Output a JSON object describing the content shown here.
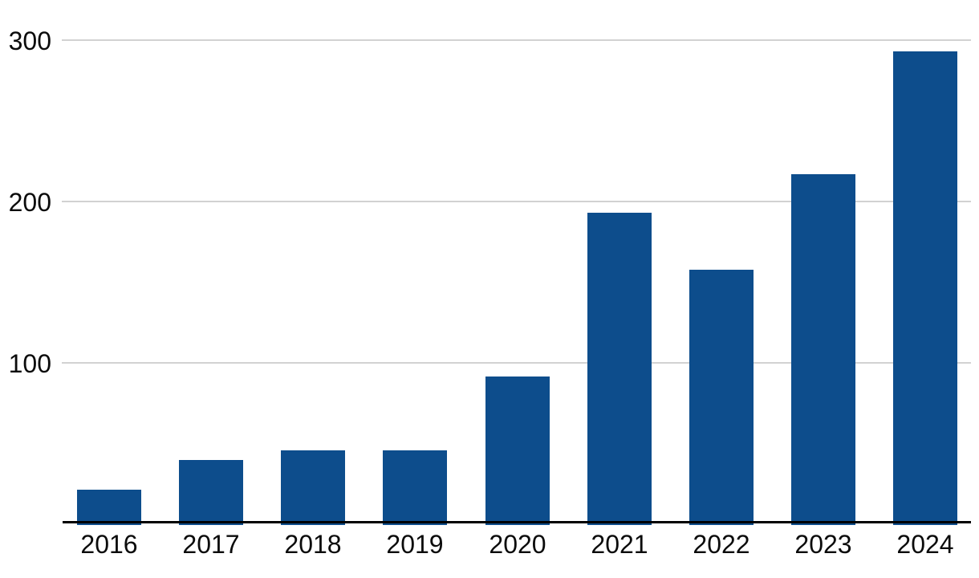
{
  "chart_data": {
    "type": "bar",
    "categories": [
      "2016",
      "2017",
      "2018",
      "2019",
      "2020",
      "2021",
      "2022",
      "2023",
      "2024"
    ],
    "values": [
      22,
      40,
      46,
      46,
      92,
      193,
      158,
      217,
      293
    ],
    "title": "",
    "xlabel": "",
    "ylabel": "",
    "ylim": [
      0,
      325
    ],
    "y_ticks": [
      100,
      200,
      300
    ],
    "y_tick_labels": [
      "100",
      "200",
      "300"
    ],
    "grid": "horizontal",
    "legend": "none",
    "colors": {
      "bar": "#0d4d8c",
      "gridline": "#d2d2d2",
      "axis_line": "#000000",
      "tick_text": "#0b0b0b",
      "background": "#ffffff"
    }
  }
}
